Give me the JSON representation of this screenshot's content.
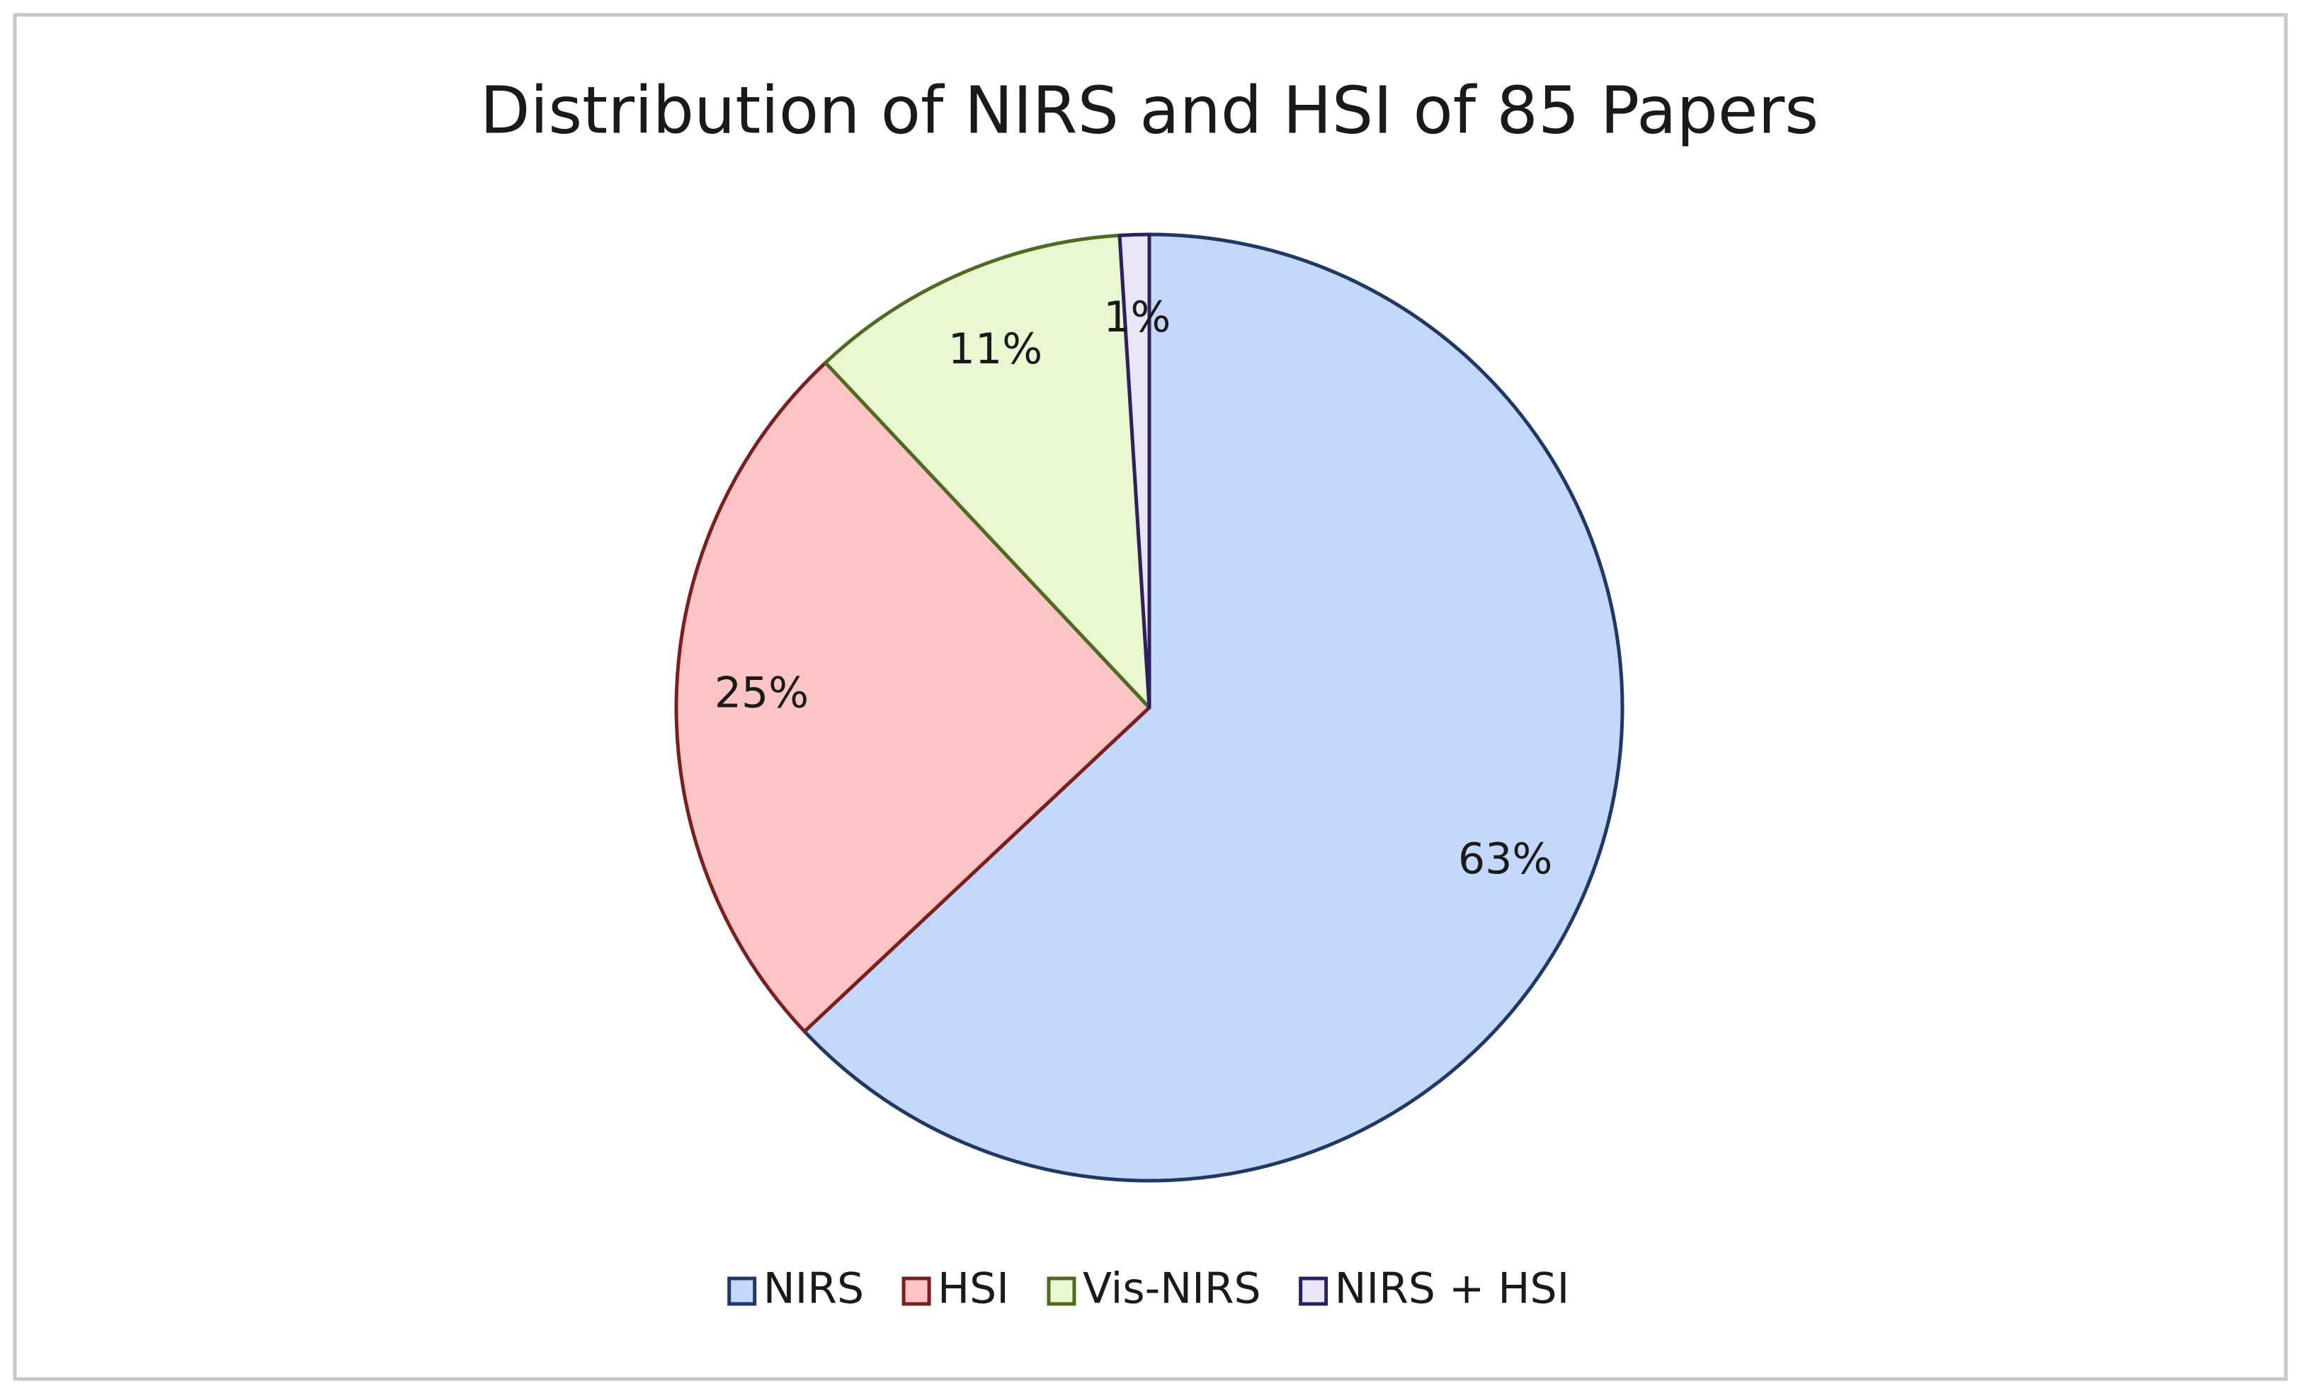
{
  "chart_data": {
    "type": "pie",
    "title": "Distribution  of NIRS and HSI of 85 Papers",
    "categories": [
      "NIRS",
      "HSI",
      "Vis-NIRS",
      "NIRS + HSI"
    ],
    "values": [
      63,
      25,
      11,
      1
    ],
    "value_labels": [
      "63%",
      "25%",
      "11%",
      "1%"
    ],
    "colors": [
      "#c3d8fa",
      "#fcc4c4",
      "#e8f9d2",
      "#ebe6f7"
    ],
    "edge_colors": [
      "#1f3864",
      "#7a1f1f",
      "#4f6b20",
      "#2e1f5e"
    ],
    "legend": "bottom"
  }
}
